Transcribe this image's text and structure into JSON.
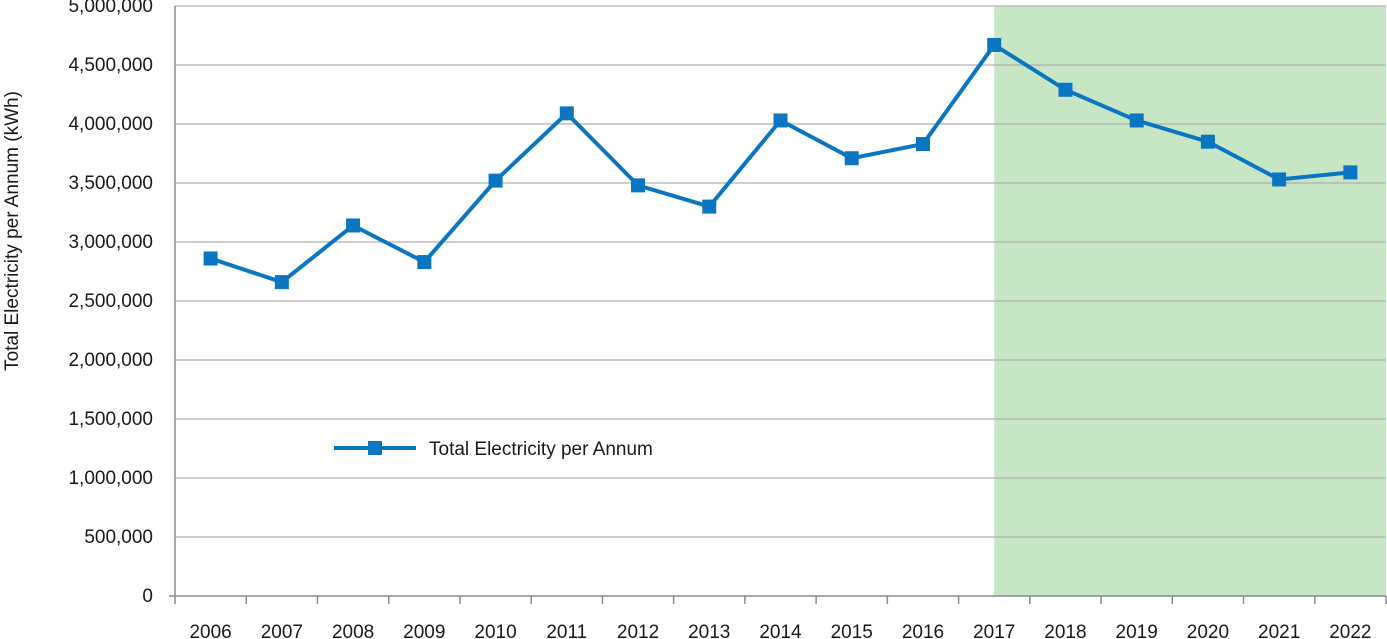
{
  "chart_data": {
    "type": "line",
    "ylabel": "Total Electricity per Annum (kWh)",
    "ylim": [
      0,
      5000000
    ],
    "y_tick_step": 500000,
    "y_tick_labels": [
      "0",
      "500,000",
      "1,000,000",
      "1,500,000",
      "2,000,000",
      "2,500,000",
      "3,000,000",
      "3,500,000",
      "4,000,000",
      "4,500,000",
      "5,000,000"
    ],
    "categories": [
      "2006",
      "2007",
      "2008",
      "2009",
      "2010",
      "2011",
      "2012",
      "2013",
      "2014",
      "2015",
      "2016",
      "2017",
      "2018",
      "2019",
      "2020",
      "2021",
      "2022"
    ],
    "series": [
      {
        "name": "Total Electricity per Annum",
        "color": "#0a76c2",
        "values": [
          2860000,
          2660000,
          3140000,
          2830000,
          3520000,
          4090000,
          3480000,
          3300000,
          4030000,
          3710000,
          3830000,
          4670000,
          4290000,
          4030000,
          3850000,
          3530000,
          3590000
        ]
      }
    ],
    "highlight_region": {
      "from_category": "2017",
      "to_category": "2022",
      "color": "#c6e6c6"
    },
    "grid": true,
    "grid_color": "#b0b0b0",
    "legend_position": "inside-lower-left"
  }
}
